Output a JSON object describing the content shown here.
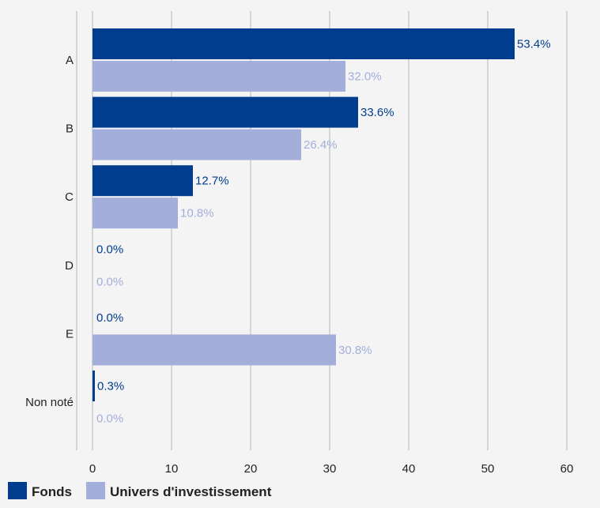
{
  "chart_data": {
    "type": "bar",
    "orientation": "horizontal",
    "categories": [
      "A",
      "B",
      "C",
      "D",
      "E",
      "Non noté"
    ],
    "series": [
      {
        "name": "Fonds",
        "values": [
          53.4,
          33.6,
          12.7,
          0.0,
          0.0,
          0.3
        ],
        "labels": [
          "53.4%",
          "33.6%",
          "12.7%",
          "0.0%",
          "0.0%",
          "0.3%"
        ],
        "color": "#003d8f"
      },
      {
        "name": "Univers d'investissement",
        "values": [
          32.0,
          26.4,
          10.8,
          0.0,
          30.8,
          0.0
        ],
        "labels": [
          "32.0%",
          "26.4%",
          "10.8%",
          "0.0%",
          "30.8%",
          "0.0%"
        ],
        "color": "#a3aedb"
      }
    ],
    "xticks": [
      "0",
      "10",
      "20",
      "30",
      "40",
      "50",
      "60"
    ],
    "xlim": [
      0,
      60
    ],
    "grid": true,
    "legend_position": "bottom-left",
    "plot_background": "#f4f4f4",
    "grid_color": "#d5d5d5"
  }
}
